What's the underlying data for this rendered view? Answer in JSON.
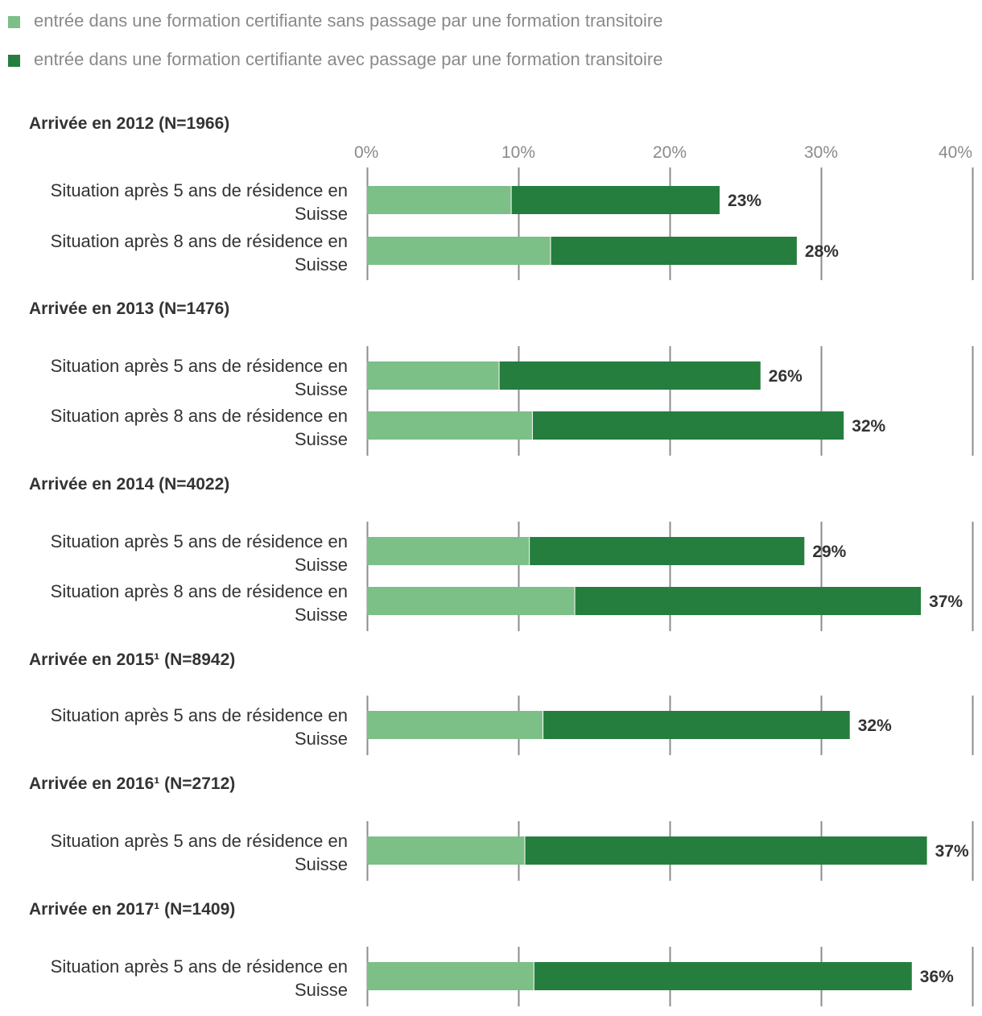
{
  "colors": {
    "light": "#7cbf87",
    "dark": "#257e3e",
    "gridline": "#8c8c8c"
  },
  "legend": [
    {
      "label": "entrée dans une formation certifiante sans passage par une formation transitoire",
      "color": "#7cbf87"
    },
    {
      "label": "entrée dans une formation certifiante avec passage par une formation transitoire",
      "color": "#257e3e"
    }
  ],
  "chart_data": {
    "type": "bar",
    "orientation": "horizontal",
    "stacked": true,
    "xlim": [
      0,
      40
    ],
    "xticks": [
      "0%",
      "10%",
      "20%",
      "30%",
      "40%"
    ],
    "series_names": [
      "entrée dans une formation certifiante sans passage par une formation transitoire",
      "entrée dans une formation certifiante avec passage par une formation transitoire"
    ],
    "groups": [
      {
        "title": "Arrivée en 2012 (N=1966)",
        "rows": [
          {
            "label": [
              "Situation après 5 ans de résidence en",
              "Suisse"
            ],
            "values": [
              9.5,
              13.8
            ],
            "total_label": "23%"
          },
          {
            "label": [
              "Situation après 8 ans de résidence en",
              "Suisse"
            ],
            "values": [
              12.1,
              16.3
            ],
            "total_label": "28%"
          }
        ]
      },
      {
        "title": "Arrivée en 2013 (N=1476)",
        "rows": [
          {
            "label": [
              "Situation après 5 ans de résidence en",
              "Suisse"
            ],
            "values": [
              8.7,
              17.3
            ],
            "total_label": "26%"
          },
          {
            "label": [
              "Situation après 8 ans de résidence en",
              "Suisse"
            ],
            "values": [
              10.9,
              20.6
            ],
            "total_label": "32%"
          }
        ]
      },
      {
        "title": "Arrivée en 2014 (N=4022)",
        "rows": [
          {
            "label": [
              "Situation après 5 ans de résidence en",
              "Suisse"
            ],
            "values": [
              10.7,
              18.2
            ],
            "total_label": "29%"
          },
          {
            "label": [
              "Situation après 8 ans de résidence en",
              "Suisse"
            ],
            "values": [
              13.7,
              22.9
            ],
            "total_label": "37%"
          }
        ]
      },
      {
        "title": "Arrivée en 2015¹ (N=8942)",
        "rows": [
          {
            "label": [
              "Situation après 5 ans de résidence en",
              "Suisse"
            ],
            "values": [
              11.6,
              20.3
            ],
            "total_label": "32%"
          }
        ]
      },
      {
        "title": "Arrivée en 2016¹ (N=2712)",
        "rows": [
          {
            "label": [
              "Situation après 5 ans de résidence en",
              "Suisse"
            ],
            "values": [
              10.4,
              26.6
            ],
            "total_label": "37%"
          }
        ]
      },
      {
        "title": "Arrivée en 2017¹ (N=1409)",
        "rows": [
          {
            "label": [
              "Situation après 5 ans de résidence en",
              "Suisse"
            ],
            "values": [
              11.0,
              25.0
            ],
            "total_label": "36%"
          }
        ]
      }
    ]
  }
}
